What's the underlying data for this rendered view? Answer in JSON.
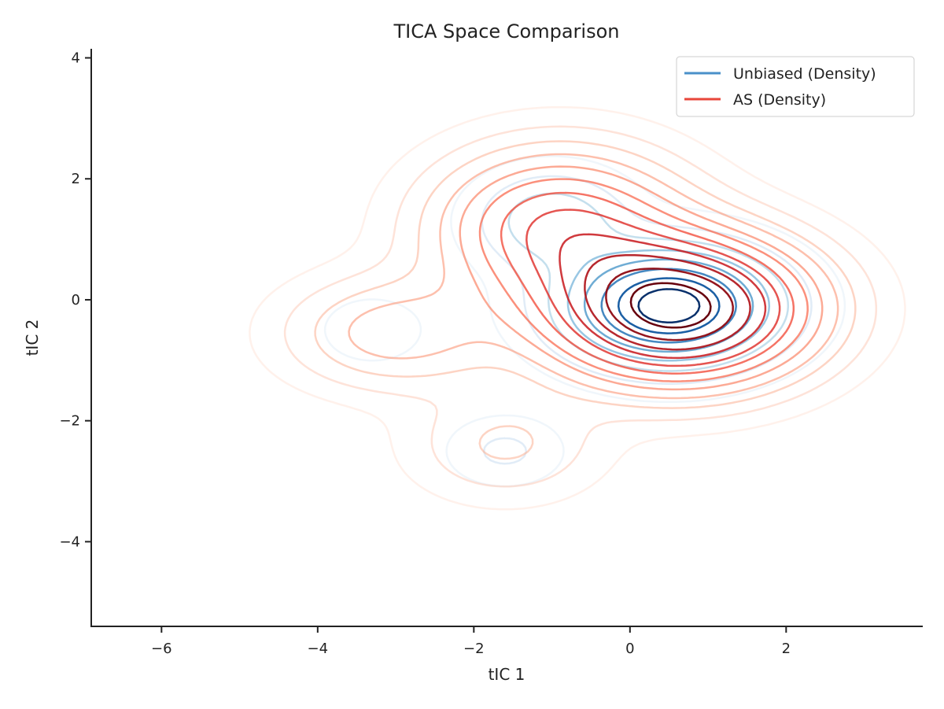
{
  "chart_data": {
    "type": "contour",
    "title": "TICA Space Comparison",
    "xlabel": "tIC 1",
    "ylabel": "tIC 2",
    "xlim": [
      -6.9,
      3.75
    ],
    "ylim": [
      -5.4,
      4.15
    ],
    "xticks": [
      -6,
      -4,
      -2,
      0,
      2
    ],
    "yticks": [
      -4,
      -2,
      0,
      2,
      4
    ],
    "xtick_labels": [
      "−6",
      "−4",
      "−2",
      "0",
      "2"
    ],
    "ytick_labels": [
      "−4",
      "−2",
      "0",
      "2",
      "4"
    ],
    "grid": false,
    "legend_position": "top-right",
    "series": [
      {
        "name": "Unbiased (Density)",
        "legend_color": "#4a90c9",
        "colormap": "Blues",
        "components": [
          {
            "mx": 0.5,
            "my": -0.1,
            "sx": 0.85,
            "sy": 0.6,
            "w": 1.0
          },
          {
            "mx": -1.0,
            "my": 1.3,
            "sx": 0.6,
            "sy": 0.5,
            "w": 0.3
          },
          {
            "mx": -1.6,
            "my": -2.5,
            "sx": 0.45,
            "sy": 0.35,
            "w": 0.12
          },
          {
            "mx": -3.3,
            "my": -0.5,
            "sx": 0.6,
            "sy": 0.5,
            "w": 0.05
          }
        ],
        "levels": 8,
        "level_fractions": [
          0.03,
          0.1,
          0.2,
          0.32,
          0.45,
          0.6,
          0.75,
          0.9
        ]
      },
      {
        "name": "AS (Density)",
        "legend_color": "#e8463a",
        "colormap": "Reds",
        "components": [
          {
            "mx": 0.6,
            "my": -0.15,
            "sx": 1.05,
            "sy": 0.75,
            "w": 1.0
          },
          {
            "mx": -0.9,
            "my": 1.2,
            "sx": 1.0,
            "sy": 0.8,
            "w": 0.45
          },
          {
            "mx": -3.0,
            "my": -0.55,
            "sx": 0.9,
            "sy": 0.6,
            "w": 0.18
          },
          {
            "mx": -1.6,
            "my": -2.4,
            "sx": 0.8,
            "sy": 0.6,
            "w": 0.1
          }
        ],
        "levels": 12,
        "level_fractions": [
          0.02,
          0.05,
          0.09,
          0.14,
          0.2,
          0.27,
          0.35,
          0.44,
          0.54,
          0.65,
          0.77,
          0.9
        ]
      }
    ]
  }
}
